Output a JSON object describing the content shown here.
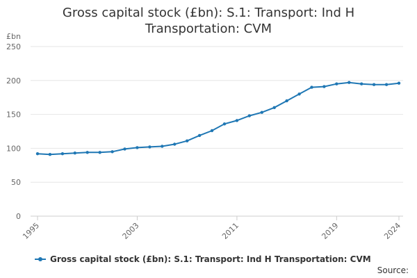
{
  "chart_data": {
    "type": "line",
    "title": "Gross capital stock (£bn): S.1: Transport: Ind H Transportation: CVM",
    "ylabel": "£bn",
    "xlabel": "",
    "ylim": [
      0,
      250
    ],
    "xlim": [
      1995,
      2024
    ],
    "yticks": [
      "0",
      "50",
      "100",
      "150",
      "200",
      "250"
    ],
    "xticks": [
      "1995",
      "2003",
      "2011",
      "2019",
      "2024"
    ],
    "grid": true,
    "legend_position": "bottom",
    "series": [
      {
        "name": "Gross capital stock (£bn): S.1: Transport: Ind H Transportation: CVM",
        "color": "#1f77b4",
        "x": [
          1995,
          1996,
          1997,
          1998,
          1999,
          2000,
          2001,
          2002,
          2003,
          2004,
          2005,
          2006,
          2007,
          2008,
          2009,
          2010,
          2011,
          2012,
          2013,
          2014,
          2015,
          2016,
          2017,
          2018,
          2019,
          2020,
          2021,
          2022,
          2023,
          2024
        ],
        "values": [
          92,
          91,
          92,
          93,
          94,
          94,
          95,
          99,
          101,
          102,
          103,
          106,
          111,
          119,
          126,
          136,
          141,
          148,
          153,
          160,
          170,
          180,
          190,
          191,
          195,
          197,
          195,
          194,
          194,
          196
        ]
      }
    ]
  },
  "footer": {
    "source_label": "Source:"
  }
}
